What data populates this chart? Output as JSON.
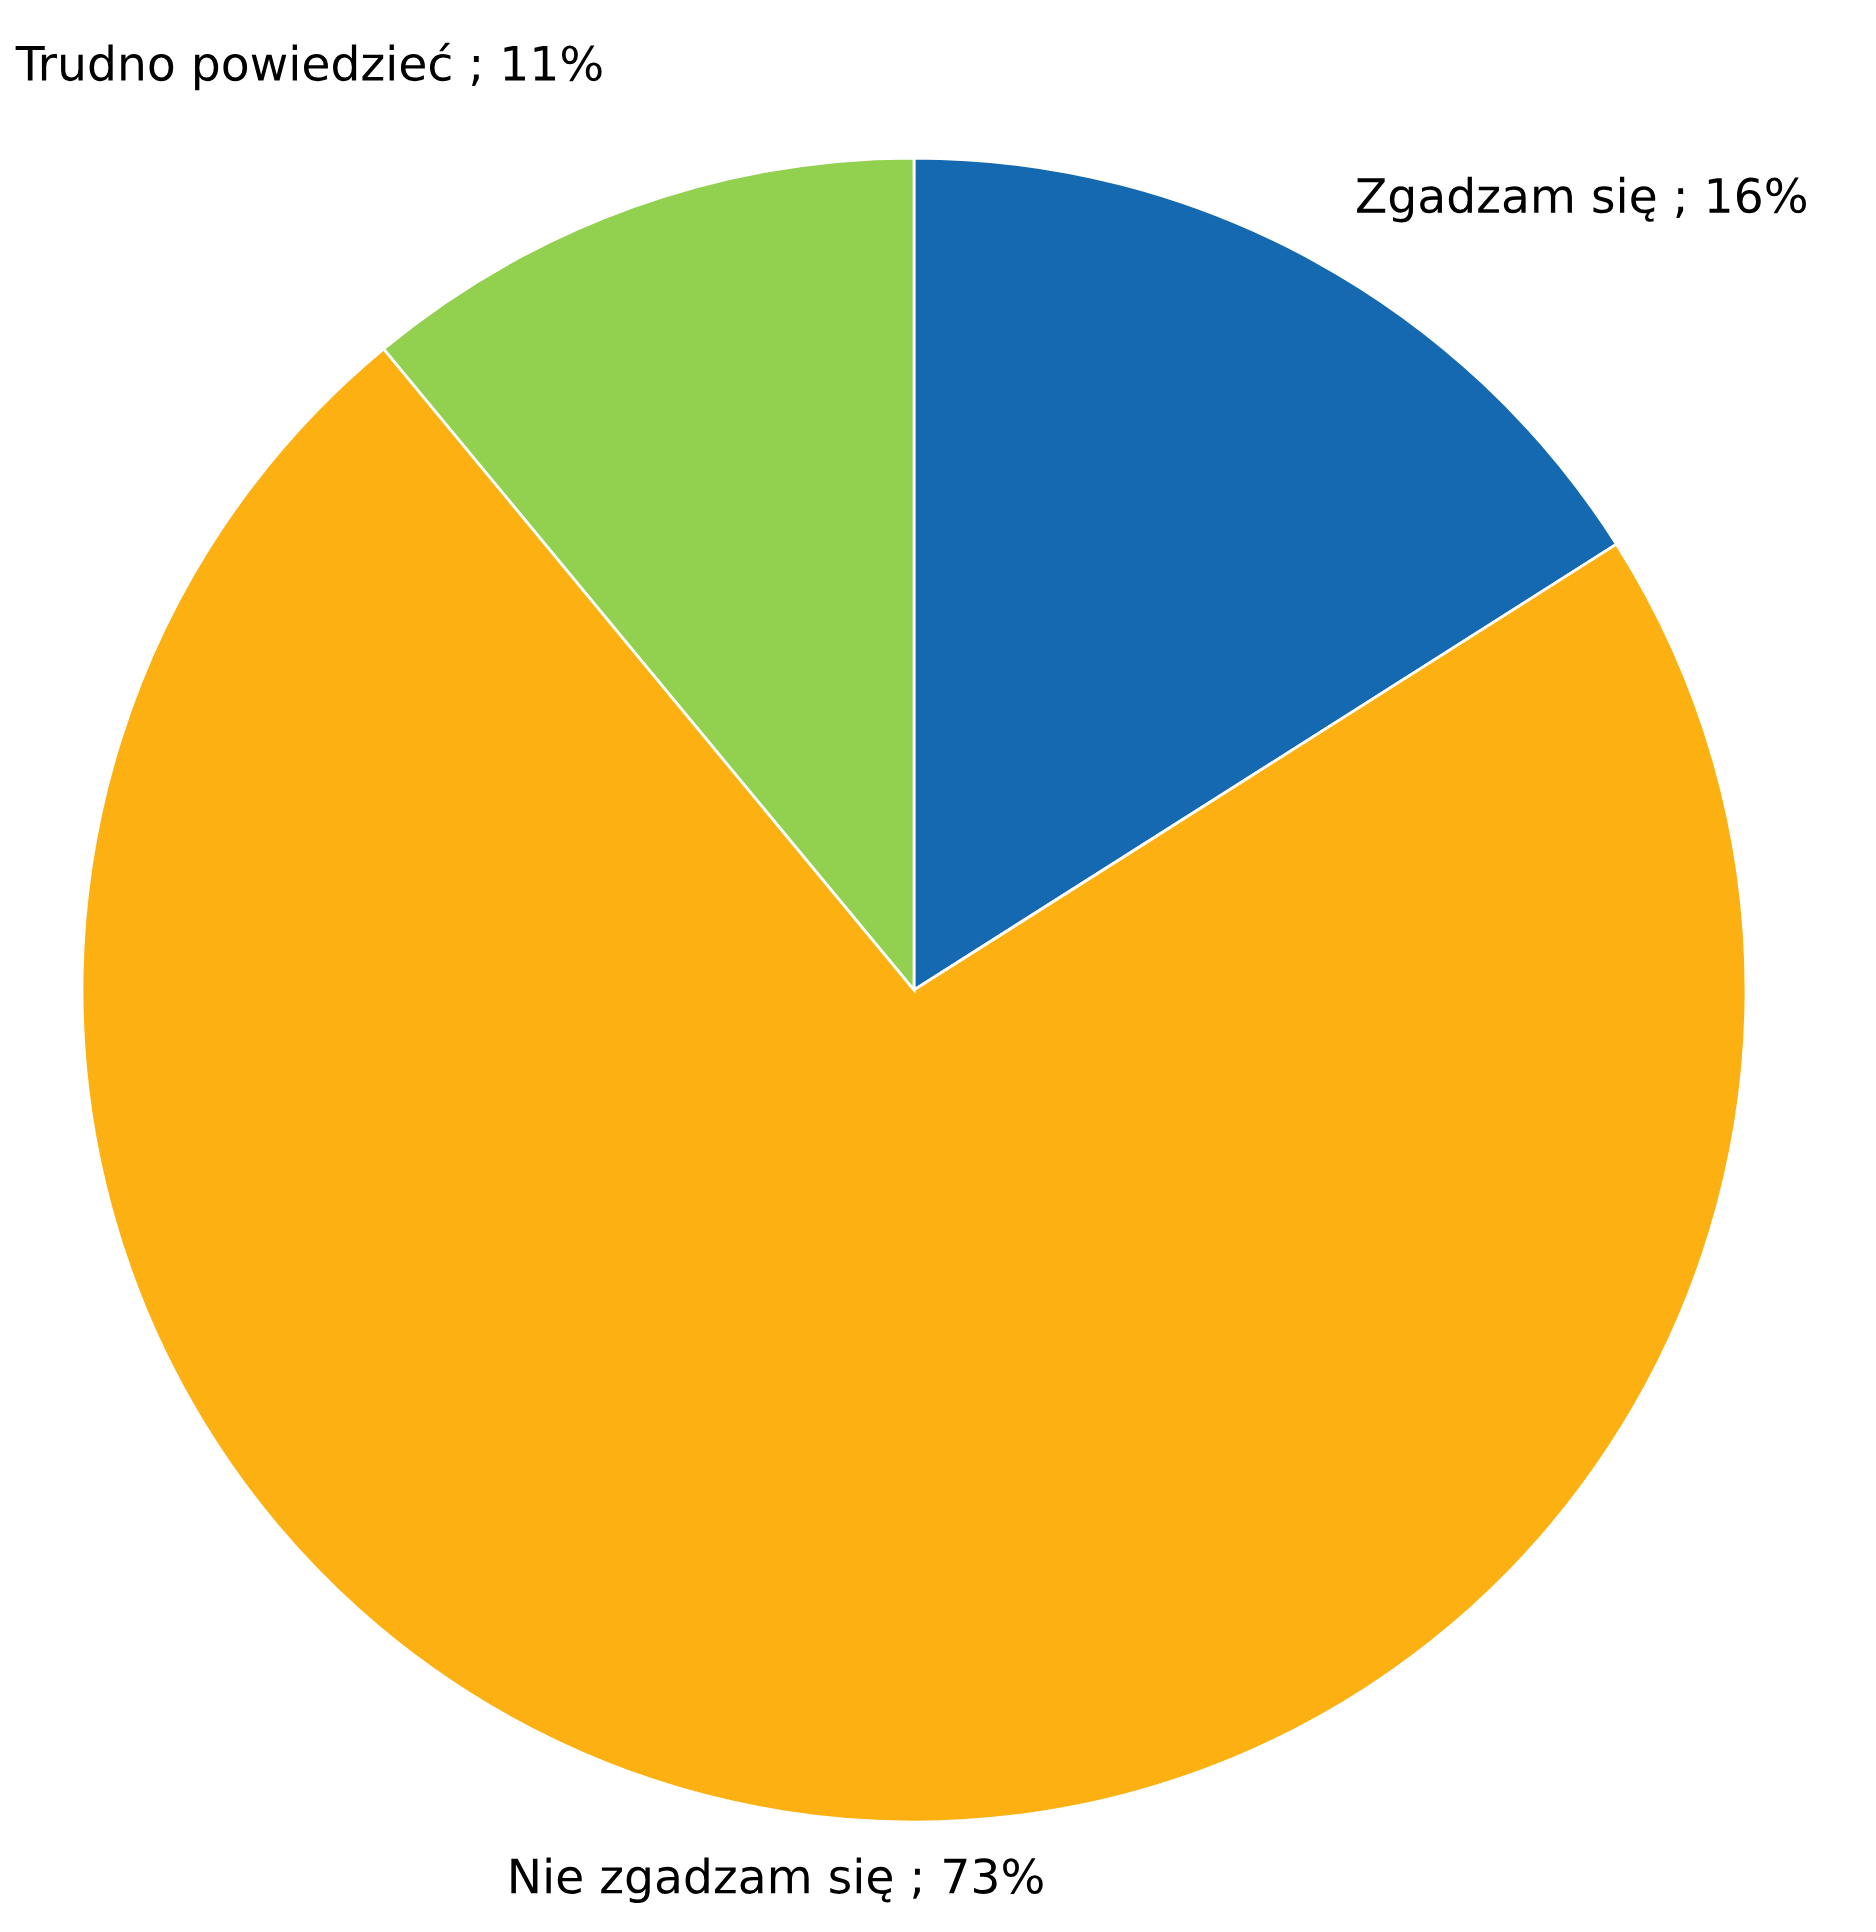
{
  "chart_data": {
    "type": "pie",
    "categories": [
      "Zgadzam się ; 16%",
      "Nie zgadzam się ; 73%",
      "Trudno powiedzieć ; 11%"
    ],
    "values": [
      16,
      73,
      11
    ],
    "colors": [
      "#1569b1",
      "#fdb012",
      "#92d050"
    ]
  }
}
